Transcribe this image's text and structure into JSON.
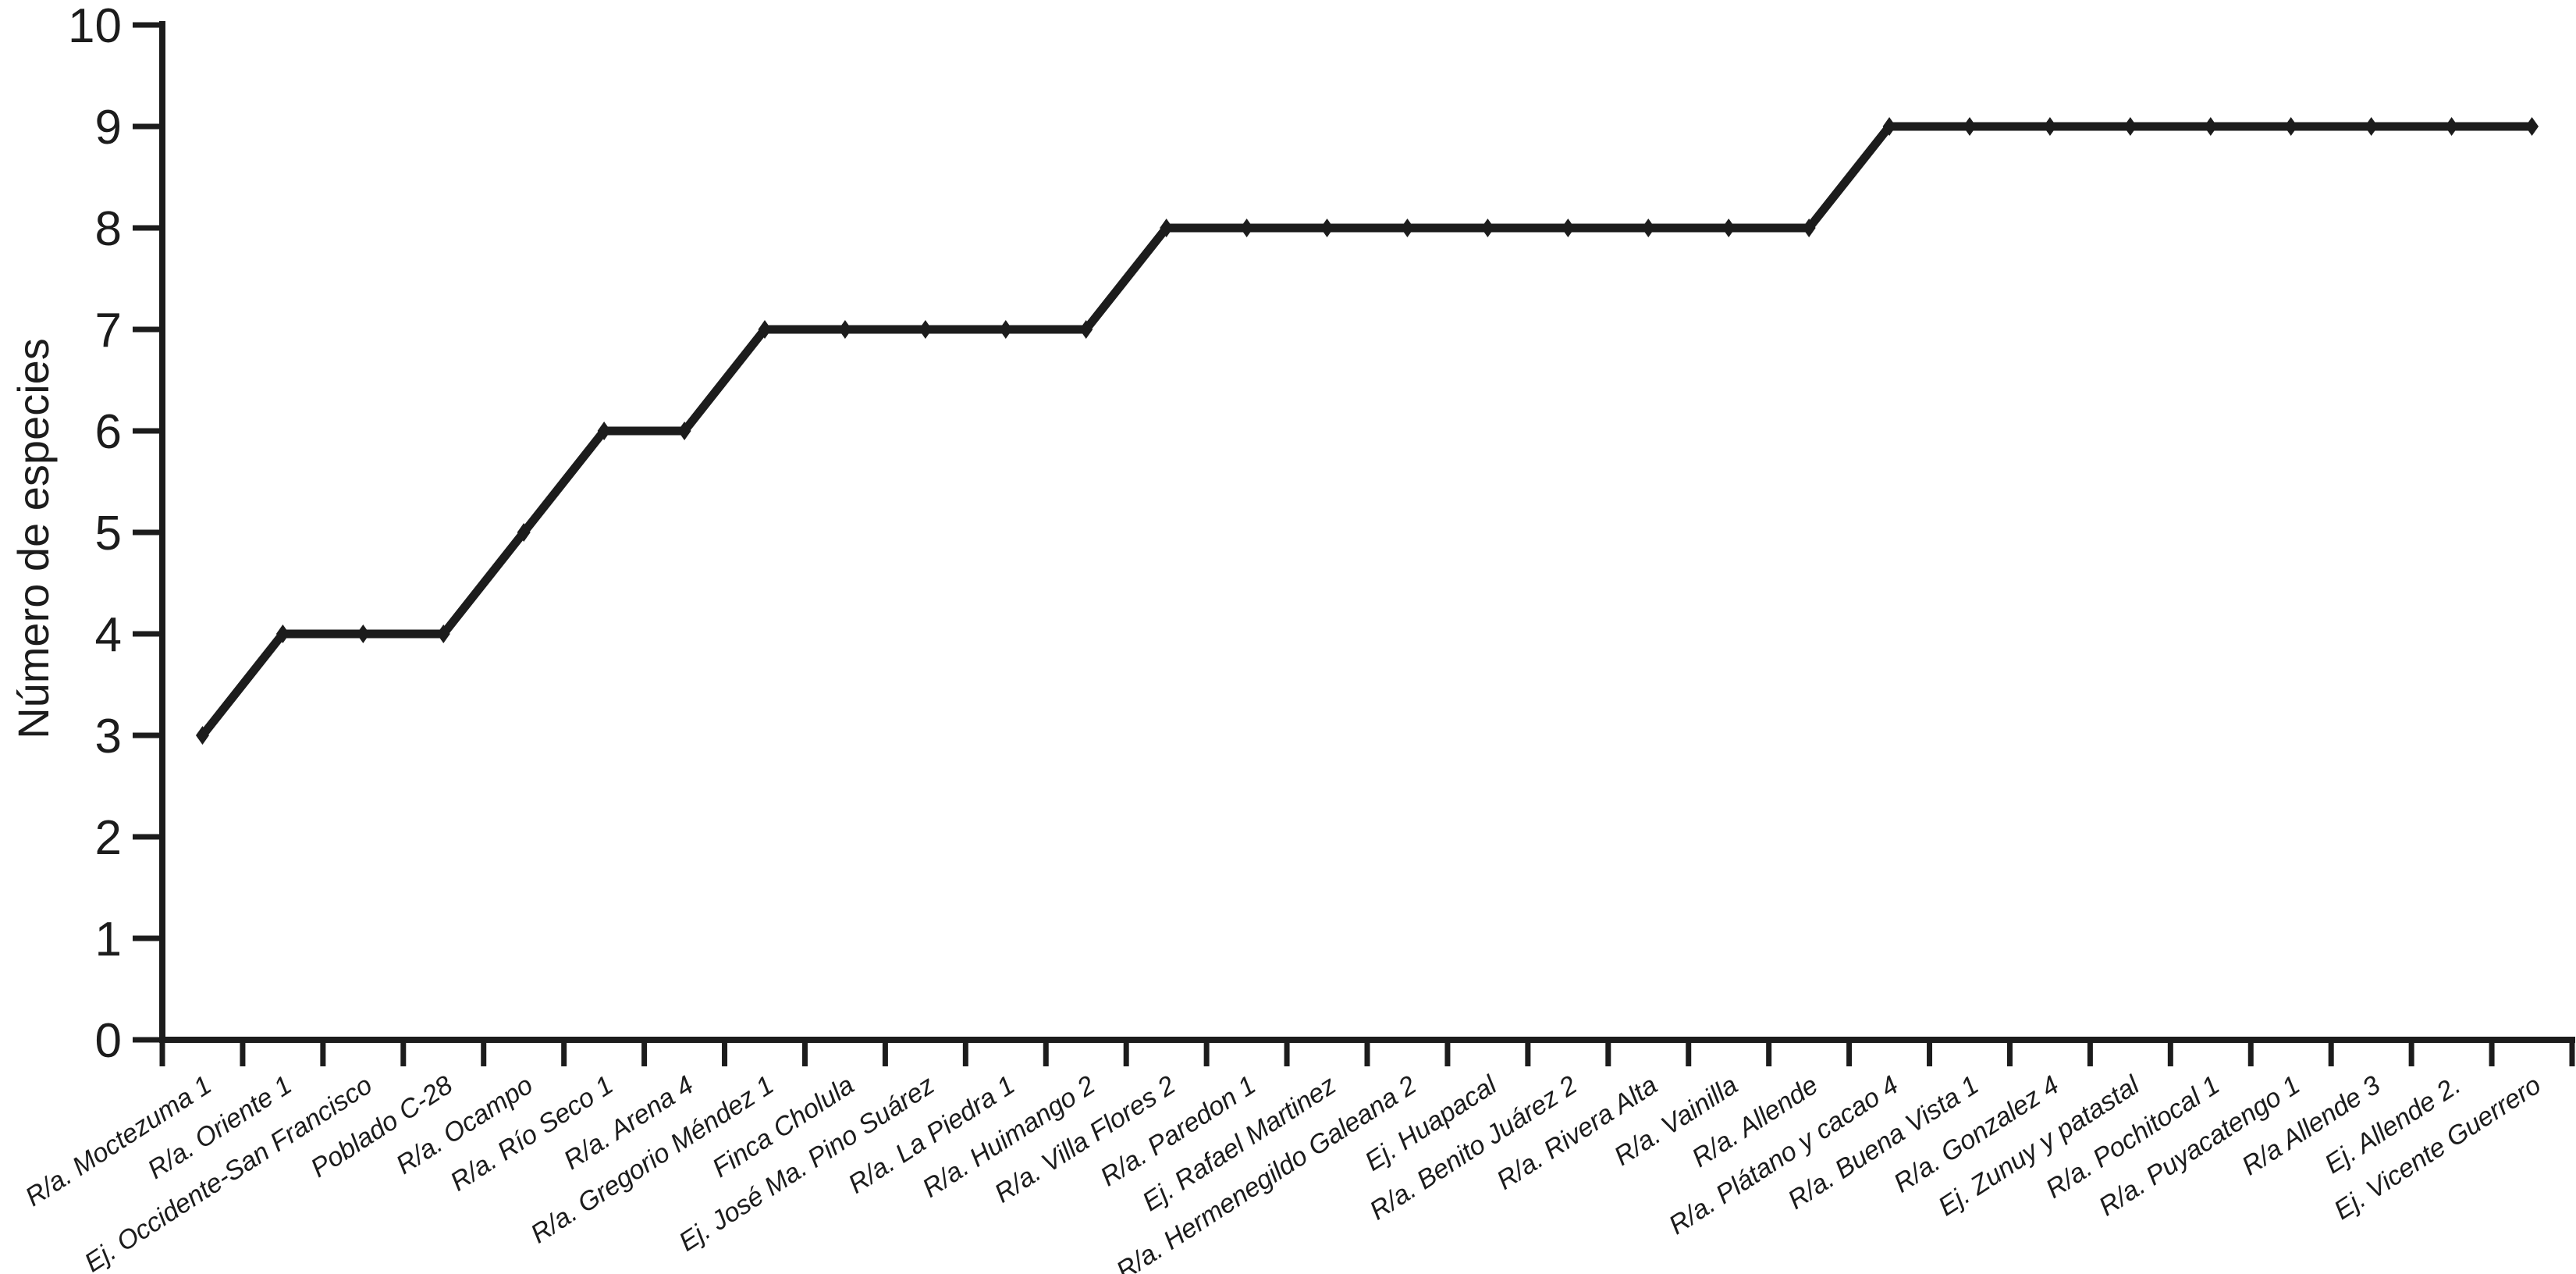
{
  "chart_data": {
    "type": "line",
    "title": "",
    "xlabel": "",
    "ylabel": "Número de especies",
    "ylim": [
      0,
      10
    ],
    "yticks": [
      0,
      1,
      2,
      3,
      4,
      5,
      6,
      7,
      8,
      9,
      10
    ],
    "grid": false,
    "legend_position": "none",
    "marker": "diamond",
    "line_color": "#1c1c1c",
    "axis_color": "#1c1c1c",
    "background": "#ffffff",
    "x_label_angle_deg": -33,
    "categories": [
      "R/a. Moctezuma 1",
      "R/a. Oriente 1",
      "Ej. Occidente-San Francisco",
      "Poblado C-28",
      "R/a. Ocampo",
      "R/a. Río Seco 1",
      "R/a. Arena 4",
      "R/a. Gregorio Méndez 1",
      "Finca Cholula",
      "Ej. José Ma. Pino Suárez",
      "R/a. La Piedra 1",
      "R/a. Huimango 2",
      "R/a. Villa Flores 2",
      "R/a. Paredon 1",
      "Ej. Rafael Martinez",
      "R/a. Hermenegildo Galeana 2",
      "Ej. Huapacal",
      "R/a. Benito Juárez 2",
      "R/a. Rivera Alta",
      "R/a. Vainilla",
      "R/a. Allende",
      "R/a. Plátano y cacao 4",
      "R/a. Buena Vista 1",
      "R/a. Gonzalez 4",
      "Ej. Zunuy y patastal",
      "R/a. Pochitocal 1",
      "R/a. Puyacatengo 1",
      "R/a Allende 3",
      "Ej. Allende 2.",
      "Ej. Vicente Guerrero"
    ],
    "series": [
      {
        "name": "Número de especies",
        "values": [
          3,
          4,
          4,
          4,
          5,
          6,
          6,
          7,
          7,
          7,
          7,
          7,
          8,
          8,
          8,
          8,
          8,
          8,
          8,
          8,
          8,
          9,
          9,
          9,
          9,
          9,
          9,
          9,
          9,
          9
        ]
      }
    ]
  }
}
